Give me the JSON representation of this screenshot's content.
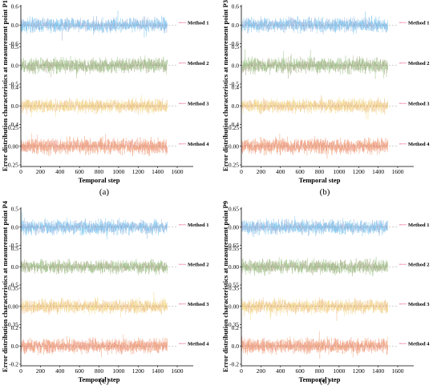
{
  "chart_data": [
    {
      "type": "line",
      "panel": "(a)",
      "title": "",
      "xlabel": "Temporal step",
      "ylabel": "Error distribution characteristics at measurement point P1",
      "x_ticks": [
        "0",
        "200",
        "400",
        "600",
        "800",
        "1000",
        "1200",
        "1400",
        "1600"
      ],
      "xlim": [
        0,
        1600
      ],
      "n_points": 1500,
      "subplots": [
        {
          "name": "Method 1",
          "color": "#7fc8f0",
          "y_ticks": [
            "0.6",
            "0.0",
            "-0.6"
          ],
          "ylim": [
            -0.6,
            0.6
          ],
          "amplitude": 0.2
        },
        {
          "name": "Method 2",
          "color": "#9dc48a",
          "y_ticks": [
            "0.5",
            "0.0",
            "-0.5"
          ],
          "ylim": [
            -0.5,
            0.5
          ],
          "amplitude": 0.18
        },
        {
          "name": "Method 3",
          "color": "#f3dc8c",
          "y_ticks": [
            "0.4",
            "0.0",
            "-0.4"
          ],
          "ylim": [
            -0.4,
            0.4
          ],
          "amplitude": 0.13
        },
        {
          "name": "Method 4",
          "color": "#f0a67e",
          "y_ticks": [
            "0.25",
            "0.00",
            "-0.25"
          ],
          "ylim": [
            -0.25,
            0.25
          ],
          "amplitude": 0.09
        }
      ]
    },
    {
      "type": "line",
      "panel": "(b)",
      "title": "",
      "xlabel": "Temporal step",
      "ylabel": "Error distribution characteristics at measurement point P3",
      "x_ticks": [
        "0",
        "200",
        "400",
        "600",
        "800",
        "1000",
        "1200",
        "1400",
        "1600"
      ],
      "xlim": [
        0,
        1600
      ],
      "n_points": 1500,
      "subplots": [
        {
          "name": "Method 1",
          "color": "#7fc8f0",
          "y_ticks": [
            "0.6",
            "0.0",
            "-0.6"
          ],
          "ylim": [
            -0.6,
            0.6
          ],
          "amplitude": 0.2
        },
        {
          "name": "Method 2",
          "color": "#9dc48a",
          "y_ticks": [
            "0.5",
            "0.0",
            "-0.5"
          ],
          "ylim": [
            -0.5,
            0.5
          ],
          "amplitude": 0.18
        },
        {
          "name": "Method 3",
          "color": "#f3dc8c",
          "y_ticks": [
            "0.4",
            "0.0",
            "-0.4"
          ],
          "ylim": [
            -0.4,
            0.4
          ],
          "amplitude": 0.13
        },
        {
          "name": "Method 4",
          "color": "#f0a67e",
          "y_ticks": [
            "0.25",
            "0.00",
            "-0.25"
          ],
          "ylim": [
            -0.25,
            0.25
          ],
          "amplitude": 0.09
        }
      ]
    },
    {
      "type": "line",
      "panel": "(c)",
      "title": "",
      "xlabel": "Temporal step",
      "ylabel": "Error distribution characteristics at measurement point P4",
      "x_ticks": [
        "0",
        "200",
        "400",
        "600",
        "800",
        "1000",
        "1200",
        "1400",
        "1600"
      ],
      "xlim": [
        0,
        1600
      ],
      "n_points": 1500,
      "subplots": [
        {
          "name": "Method 1",
          "color": "#7fc8f0",
          "y_ticks": [
            "0.5",
            "0.0",
            "-0.5"
          ],
          "ylim": [
            -0.5,
            0.5
          ],
          "amplitude": 0.17
        },
        {
          "name": "Method 2",
          "color": "#9dc48a",
          "y_ticks": [
            "0.5",
            "0.0",
            "-0.5"
          ],
          "ylim": [
            -0.5,
            0.5
          ],
          "amplitude": 0.16
        },
        {
          "name": "Method 3",
          "color": "#f3dc8c",
          "y_ticks": [
            "0.35",
            "0.00",
            "-0.35"
          ],
          "ylim": [
            -0.35,
            0.35
          ],
          "amplitude": 0.12
        },
        {
          "name": "Method 4",
          "color": "#f0a67e",
          "y_ticks": [
            "0.2",
            "0.0",
            "-0.2"
          ],
          "ylim": [
            -0.2,
            0.2
          ],
          "amplitude": 0.07
        }
      ]
    },
    {
      "type": "line",
      "panel": "(d)",
      "title": "",
      "xlabel": "Temporal step",
      "ylabel": "Error distribution characteristics at measurement point P9",
      "x_ticks": [
        "0",
        "200",
        "400",
        "600",
        "800",
        "1000",
        "1200",
        "1400",
        "1600"
      ],
      "xlim": [
        0,
        1600
      ],
      "n_points": 1500,
      "subplots": [
        {
          "name": "Method 1",
          "color": "#7fc8f0",
          "y_ticks": [
            "0.65",
            "0.00",
            "-0.65"
          ],
          "ylim": [
            -0.65,
            0.65
          ],
          "amplitude": 0.22
        },
        {
          "name": "Method 2",
          "color": "#9dc48a",
          "y_ticks": [
            "0.55",
            "0.00",
            "-0.55"
          ],
          "ylim": [
            -0.55,
            0.55
          ],
          "amplitude": 0.19
        },
        {
          "name": "Method 3",
          "color": "#f3dc8c",
          "y_ticks": [
            "0.35",
            "0.00",
            "-0.35"
          ],
          "ylim": [
            -0.35,
            0.35
          ],
          "amplitude": 0.12
        },
        {
          "name": "Method 4",
          "color": "#f0a67e",
          "y_ticks": [
            "0.2",
            "0.0",
            "-0.2"
          ],
          "ylim": [
            -0.2,
            0.2
          ],
          "amplitude": 0.07
        }
      ]
    }
  ],
  "colors": {
    "legend_line": "#f4a0b8",
    "axis": "#000000",
    "spike": "#ec8fb0"
  }
}
